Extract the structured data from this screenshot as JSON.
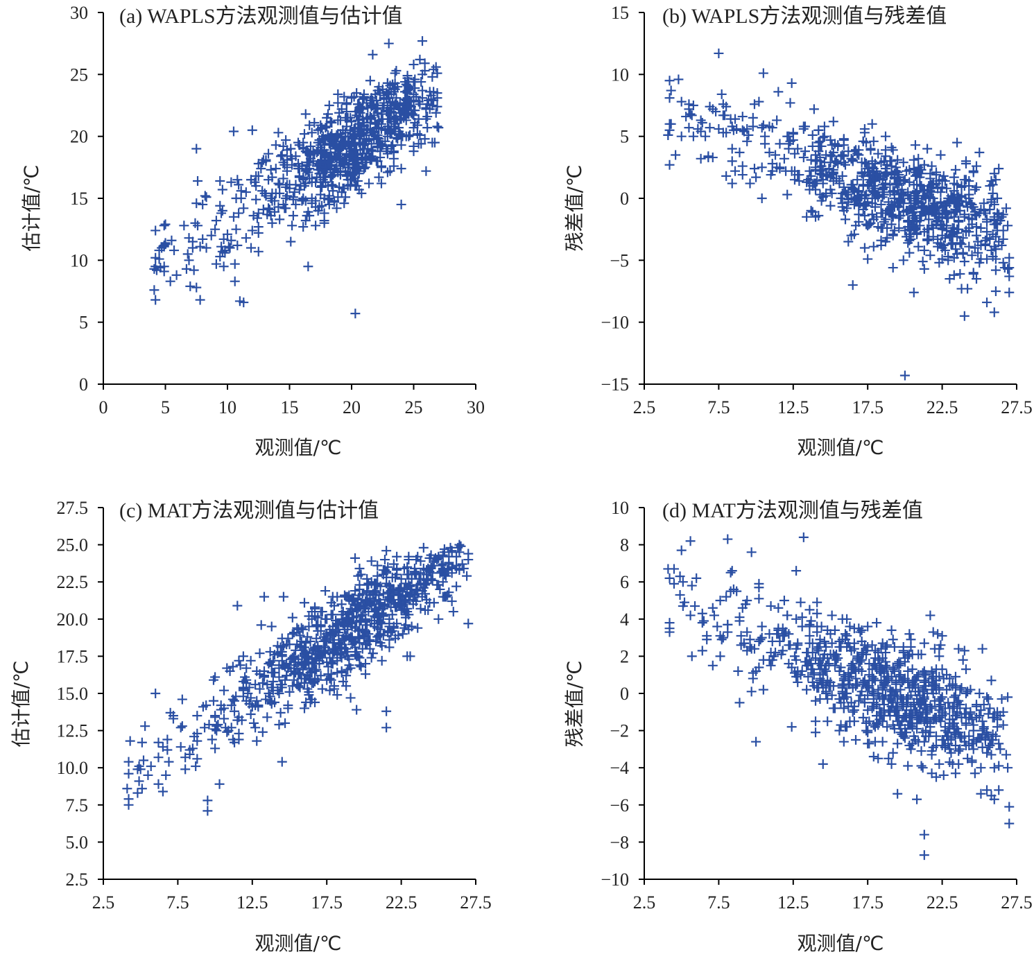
{
  "colors": {
    "marker": "#2a4fa3",
    "axis": "#000000",
    "text": "#222222"
  },
  "chart_data": [
    {
      "type": "scatter",
      "title": "(a) WAPLS方法观测值与估计值",
      "xlabel": "观测值/℃",
      "ylabel": "估计值/℃",
      "xlim": [
        0,
        30
      ],
      "ylim": [
        0,
        30
      ],
      "xticks": [
        "0",
        "5",
        "10",
        "15",
        "20",
        "25",
        "30"
      ],
      "yticks": [
        "0",
        "5",
        "10",
        "15",
        "20",
        "25",
        "30"
      ],
      "cloud": {
        "n": 800,
        "seed": 11,
        "xmin": 4,
        "xmax": 27,
        "xcenter": 20.5,
        "xspread": 3.8,
        "slope": 0.62,
        "intercept": 7.0,
        "noise": 2.0,
        "ymin": 5.5,
        "ymax": 28
      },
      "points": [
        [
          4.2,
          12.4
        ],
        [
          4.2,
          10.2
        ],
        [
          4.2,
          9.5
        ],
        [
          4.2,
          6.8
        ],
        [
          5,
          12.9
        ],
        [
          6.5,
          12.8
        ],
        [
          7,
          7.9
        ],
        [
          7.5,
          7.8
        ],
        [
          7.5,
          19
        ],
        [
          8,
          14.5
        ],
        [
          20.3,
          5.7
        ],
        [
          16.5,
          9.5
        ],
        [
          23,
          27.5
        ],
        [
          25.7,
          27.7
        ],
        [
          25,
          25.8
        ],
        [
          26,
          17.2
        ],
        [
          24,
          14.5
        ],
        [
          8.2,
          15.2
        ],
        [
          6.8,
          10.5
        ],
        [
          11,
          6.7
        ],
        [
          11.3,
          6.6
        ],
        [
          10.5,
          20.4
        ],
        [
          12,
          20.5
        ]
      ]
    },
    {
      "type": "scatter",
      "title": "(b) WAPLS方法观测值与残差值",
      "xlabel": "观测值/℃",
      "ylabel": "残差值/℃",
      "xlim": [
        2.5,
        27.5
      ],
      "ylim": [
        -15,
        15
      ],
      "xticks": [
        "2.5",
        "7.5",
        "12.5",
        "17.5",
        "22.5",
        "27.5"
      ],
      "yticks": [
        "−15",
        "−10",
        "−5",
        "0",
        "5",
        "10",
        "15"
      ],
      "cloud": {
        "n": 800,
        "seed": 23,
        "xmin": 4,
        "xmax": 27,
        "xcenter": 20,
        "xspread": 4.0,
        "slope": -0.42,
        "intercept": 8.3,
        "noise": 2.0,
        "ymin": -14.5,
        "ymax": 12
      },
      "points": [
        [
          7.5,
          11.7
        ],
        [
          10.5,
          10.1
        ],
        [
          4.2,
          8.1
        ],
        [
          5,
          7.8
        ],
        [
          4.2,
          6
        ],
        [
          4.2,
          5.5
        ],
        [
          4.2,
          2.7
        ],
        [
          11.5,
          8.6
        ],
        [
          20,
          -14.3
        ],
        [
          16.5,
          -7
        ],
        [
          24,
          -9.5
        ],
        [
          26,
          -9.2
        ],
        [
          27,
          -7.6
        ],
        [
          25.5,
          -8.4
        ],
        [
          27,
          -5.6
        ],
        [
          27,
          -4.8
        ],
        [
          27,
          -6.3
        ],
        [
          25,
          3.7
        ],
        [
          23.5,
          4.5
        ],
        [
          26,
          2
        ]
      ]
    },
    {
      "type": "scatter",
      "title": "(c) MAT方法观测值与估计值",
      "xlabel": "观测值/℃",
      "ylabel": "估计值/℃",
      "xlim": [
        2.5,
        27.5
      ],
      "ylim": [
        2.5,
        27.5
      ],
      "xticks": [
        "2.5",
        "7.5",
        "12.5",
        "17.5",
        "22.5",
        "27.5"
      ],
      "yticks": [
        "2.5",
        "5.0",
        "7.5",
        "10.0",
        "12.5",
        "15.0",
        "17.5",
        "20.0",
        "22.5",
        "25.0",
        "27.5"
      ],
      "cloud": {
        "n": 800,
        "seed": 37,
        "xmin": 4,
        "xmax": 27,
        "xcenter": 19.5,
        "xspread": 4.0,
        "slope": 0.66,
        "intercept": 6.8,
        "noise": 1.5,
        "ymin": 7,
        "ymax": 25
      },
      "points": [
        [
          4.2,
          10.4
        ],
        [
          4.2,
          7.9
        ],
        [
          4.2,
          7.5
        ],
        [
          5.3,
          12.8
        ],
        [
          6.5,
          8.4
        ],
        [
          9.5,
          7.1
        ],
        [
          9.5,
          7.8
        ],
        [
          10.3,
          8.9
        ],
        [
          25.8,
          24.8
        ],
        [
          27,
          24
        ],
        [
          27,
          19.7
        ],
        [
          26,
          20.5
        ],
        [
          21.5,
          12.7
        ],
        [
          21.5,
          13.8
        ],
        [
          19.5,
          13.9
        ],
        [
          14.5,
          10.4
        ],
        [
          13.3,
          21.5
        ],
        [
          14.6,
          21.5
        ],
        [
          11.5,
          20.9
        ]
      ]
    },
    {
      "type": "scatter",
      "title": "(d) MAT方法观测值与残差值",
      "xlabel": "观测值/℃",
      "ylabel": "残差值/℃",
      "xlim": [
        2.5,
        27.5
      ],
      "ylim": [
        -10,
        10
      ],
      "xticks": [
        "2.5",
        "7.5",
        "12.5",
        "17.5",
        "22.5",
        "27.5"
      ],
      "yticks": [
        "−10",
        "−8",
        "−6",
        "−4",
        "−2",
        "0",
        "2",
        "4",
        "6",
        "8",
        "10"
      ],
      "cloud": {
        "n": 800,
        "seed": 53,
        "xmin": 4,
        "xmax": 27,
        "xcenter": 19.5,
        "xspread": 4.0,
        "slope": -0.33,
        "intercept": 6.4,
        "noise": 1.5,
        "ymin": -8.7,
        "ymax": 8.5
      },
      "points": [
        [
          8.1,
          8.3
        ],
        [
          13.2,
          8.4
        ],
        [
          5,
          7.7
        ],
        [
          4.2,
          6.2
        ],
        [
          4.2,
          3.8
        ],
        [
          4.2,
          3.5
        ],
        [
          4.2,
          3.3
        ],
        [
          6,
          6.2
        ],
        [
          9.7,
          7.6
        ],
        [
          21.3,
          -7.6
        ],
        [
          21.3,
          -8.7
        ],
        [
          27,
          -7
        ],
        [
          27,
          -6.1
        ],
        [
          26,
          -5.7
        ],
        [
          25.5,
          -5.2
        ],
        [
          20.8,
          -5.7
        ],
        [
          19.5,
          -5.4
        ],
        [
          14.5,
          -3.8
        ],
        [
          10,
          -2.6
        ],
        [
          8.9,
          -0.5
        ]
      ]
    }
  ]
}
